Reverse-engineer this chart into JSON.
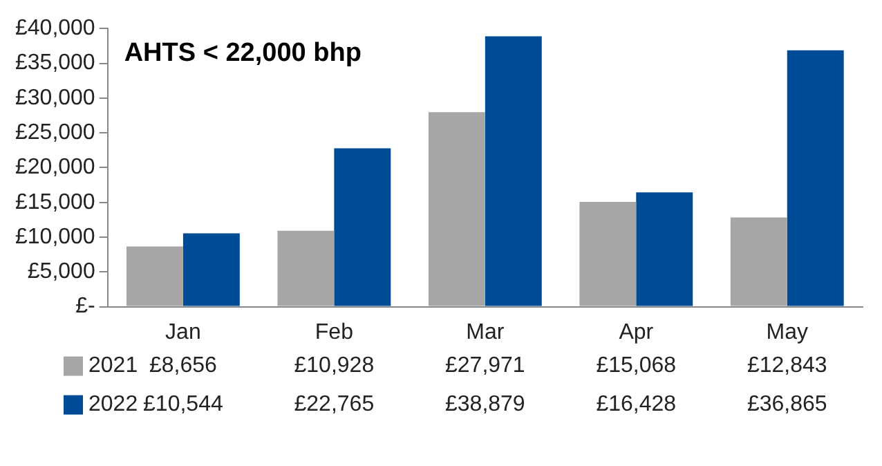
{
  "chart_data": {
    "type": "bar",
    "title": "AHTS < 22,000 bhp",
    "categories": [
      "Jan",
      "Feb",
      "Mar",
      "Apr",
      "May"
    ],
    "series": [
      {
        "name": "2021",
        "color": "#a6a6a6",
        "values": [
          8656,
          10928,
          27971,
          15068,
          12843
        ],
        "value_labels": [
          "£8,656",
          "£10,928",
          "£27,971",
          "£15,068",
          "£12,843"
        ]
      },
      {
        "name": "2022",
        "color": "#004b96",
        "values": [
          10544,
          22765,
          38879,
          16428,
          36865
        ],
        "value_labels": [
          "£10,544",
          "£22,765",
          "£38,879",
          "£16,428",
          "£36,865"
        ]
      }
    ],
    "ylim": [
      0,
      40000
    ],
    "yticks": [
      {
        "value": 0,
        "label": "£-"
      },
      {
        "value": 5000,
        "label": "£5,000"
      },
      {
        "value": 10000,
        "label": "£10,000"
      },
      {
        "value": 15000,
        "label": "£15,000"
      },
      {
        "value": 20000,
        "label": "£20,000"
      },
      {
        "value": 25000,
        "label": "£25,000"
      },
      {
        "value": 30000,
        "label": "£30,000"
      },
      {
        "value": 35000,
        "label": "£35,000"
      },
      {
        "value": 40000,
        "label": "£40,000"
      }
    ],
    "grid": false,
    "legend": "bottom"
  }
}
